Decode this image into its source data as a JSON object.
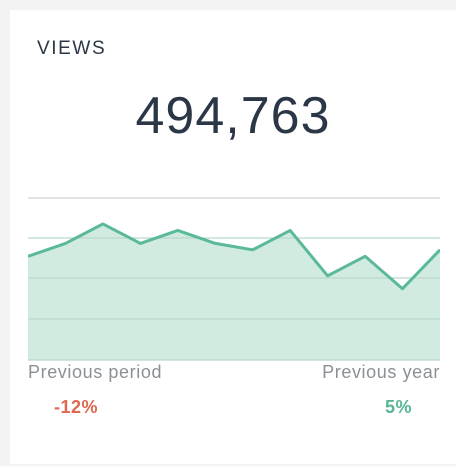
{
  "widget": {
    "title": "VIEWS",
    "value": "494,763",
    "comparisons": [
      {
        "label": "Previous period",
        "change": "-12%",
        "color": "#e0674f"
      },
      {
        "label": "Previous year",
        "change": "5%",
        "color": "#56b692"
      }
    ]
  },
  "colors": {
    "line": "#5ab998",
    "fill": "#d1ebe1",
    "grid": "#cfd4d1",
    "grid_inner": "#b8d9cb"
  },
  "chart_data": {
    "type": "area",
    "values": [
      16,
      18,
      21,
      18,
      20,
      18,
      17,
      20,
      13,
      16,
      11,
      17
    ]
  }
}
